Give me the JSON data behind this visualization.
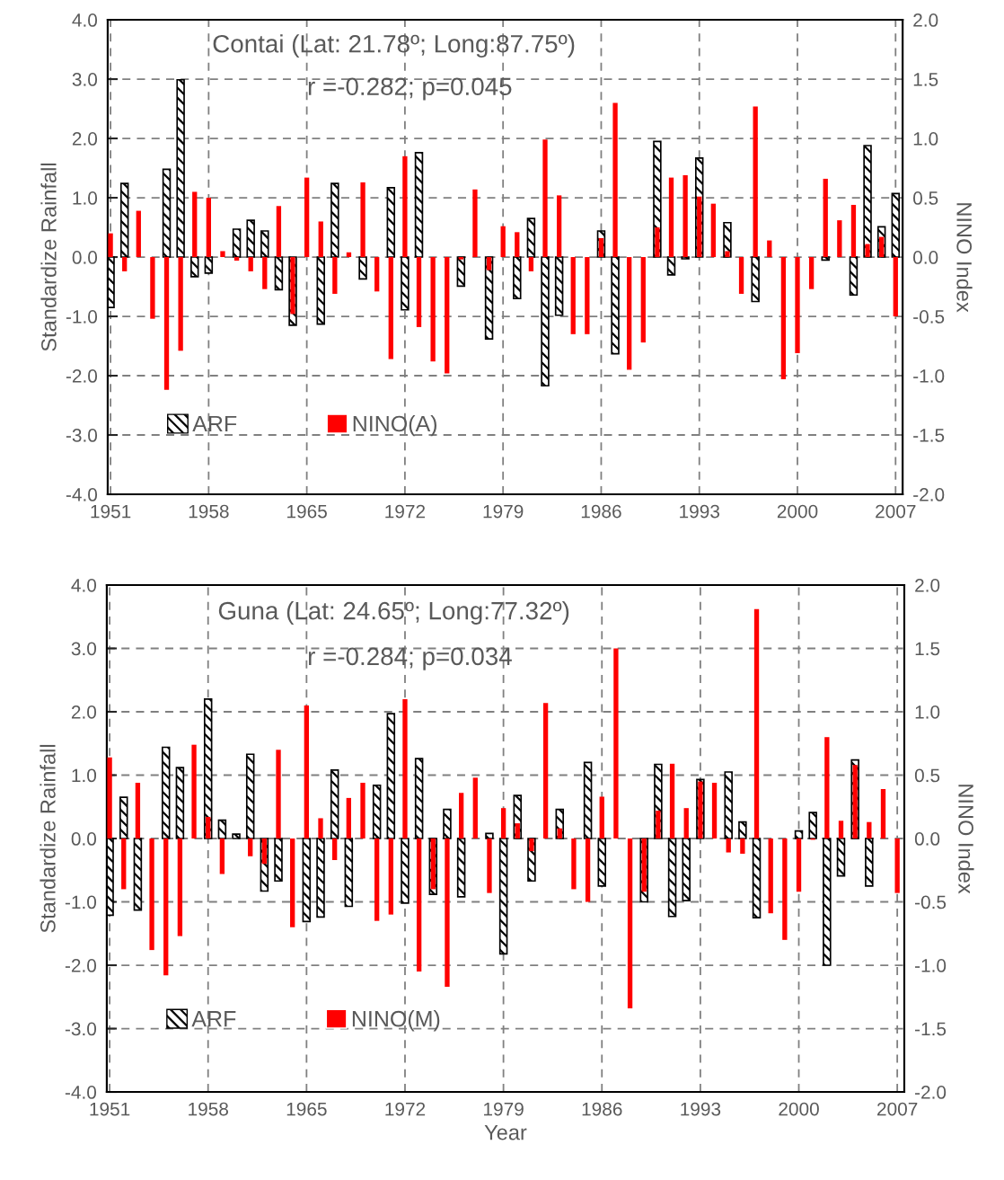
{
  "chart_data": [
    {
      "type": "bar",
      "title": "Contai (Lat: 21.78º; Long:87.75º)",
      "subtitle": "r =-0.282; p=0.045",
      "ylabel": "Standardize Rainfall",
      "y2label": "NINO Index",
      "x": [
        1951,
        1952,
        1953,
        1954,
        1955,
        1956,
        1957,
        1958,
        1959,
        1960,
        1961,
        1962,
        1963,
        1964,
        1965,
        1966,
        1967,
        1968,
        1969,
        1970,
        1971,
        1972,
        1973,
        1974,
        1975,
        1976,
        1977,
        1978,
        1979,
        1980,
        1981,
        1982,
        1983,
        1984,
        1985,
        1986,
        1987,
        1988,
        1989,
        1990,
        1991,
        1992,
        1993,
        1994,
        1995,
        1996,
        1997,
        1998,
        1999,
        2000,
        2001,
        2002,
        2003,
        2004,
        2005,
        2006,
        2007
      ],
      "series": [
        {
          "name": "ARF",
          "color": "#000000",
          "values": [
            -0.85,
            1.24,
            null,
            null,
            1.48,
            2.99,
            -0.33,
            -0.27,
            null,
            0.47,
            0.62,
            0.44,
            -0.55,
            -1.15,
            null,
            -1.13,
            1.24,
            null,
            -0.37,
            null,
            1.17,
            -0.89,
            1.76,
            null,
            null,
            -0.49,
            null,
            -1.38,
            null,
            -0.7,
            0.65,
            -2.17,
            -0.98,
            null,
            null,
            0.44,
            -1.63,
            null,
            null,
            1.95,
            -0.3,
            -0.03,
            1.67,
            null,
            0.58,
            null,
            -0.75,
            null,
            null,
            null,
            null,
            -0.05,
            null,
            -0.64,
            1.88,
            0.51,
            1.07
          ]
        },
        {
          "name": "NINO(A)",
          "color": "#ff0000",
          "axis": "y2",
          "values": [
            0.2,
            -0.12,
            0.39,
            -0.52,
            -1.12,
            -0.79,
            0.55,
            0.5,
            0.05,
            -0.03,
            -0.12,
            -0.27,
            0.43,
            -0.48,
            0.67,
            0.3,
            -0.31,
            0.04,
            0.63,
            -0.29,
            -0.86,
            0.85,
            -0.59,
            -0.88,
            -0.98,
            -0.02,
            0.57,
            -0.11,
            0.26,
            0.21,
            -0.12,
            0.99,
            0.52,
            -0.65,
            -0.65,
            0.16,
            1.3,
            -0.95,
            -0.72,
            0.25,
            0.67,
            0.69,
            0.51,
            0.45,
            0.05,
            -0.31,
            1.27,
            0.14,
            -1.03,
            -0.81,
            -0.27,
            0.66,
            0.31,
            0.44,
            0.11,
            0.17,
            -0.5
          ]
        }
      ],
      "xlim": [
        1950.8,
        2007.5
      ],
      "xticks": [
        1951,
        1958,
        1965,
        1972,
        1979,
        1986,
        1993,
        2000,
        2007
      ],
      "ylim": [
        -4,
        4
      ],
      "yticks": [
        {
          "value": -4,
          "label": "-4.0"
        },
        {
          "value": -3,
          "label": "-3.0"
        },
        {
          "value": -2,
          "label": "-2.0"
        },
        {
          "value": -1,
          "label": "-1.0"
        },
        {
          "value": 0,
          "label": "0.0"
        },
        {
          "value": 1,
          "label": "1.0"
        },
        {
          "value": 2,
          "label": "2.0"
        },
        {
          "value": 3,
          "label": "3.0"
        },
        {
          "value": 4,
          "label": "4.0"
        }
      ],
      "y2lim": [
        -2,
        2
      ],
      "y2ticks": [
        {
          "value": -2,
          "label": "-2.0"
        },
        {
          "value": -1.5,
          "label": "-1.5"
        },
        {
          "value": -1,
          "label": "-1.0"
        },
        {
          "value": -0.5,
          "label": "-0.5"
        },
        {
          "value": 0,
          "label": "0.0"
        },
        {
          "value": 0.5,
          "label": "0.5"
        },
        {
          "value": 1,
          "label": "1.0"
        },
        {
          "value": 1.5,
          "label": "1.5"
        },
        {
          "value": 2,
          "label": "2.0"
        }
      ],
      "grid": true,
      "legend": "bottom left"
    },
    {
      "type": "bar",
      "title": "Guna (Lat: 24.65º; Long:77.32º)",
      "subtitle": "r =-0.284; p=0.034",
      "xlabel": "Year",
      "ylabel": "Standardize Rainfall",
      "y2label": "NINO Index",
      "x": [
        1951,
        1952,
        1953,
        1954,
        1955,
        1956,
        1957,
        1958,
        1959,
        1960,
        1961,
        1962,
        1963,
        1964,
        1965,
        1966,
        1967,
        1968,
        1969,
        1970,
        1971,
        1972,
        1973,
        1974,
        1975,
        1976,
        1977,
        1978,
        1979,
        1980,
        1981,
        1982,
        1983,
        1984,
        1985,
        1986,
        1987,
        1988,
        1989,
        1990,
        1991,
        1992,
        1993,
        1994,
        1995,
        1996,
        1997,
        1998,
        1999,
        2000,
        2001,
        2002,
        2003,
        2004,
        2005,
        2006,
        2007
      ],
      "series": [
        {
          "name": "ARF",
          "color": "#000000",
          "values": [
            -1.21,
            0.65,
            -1.13,
            null,
            1.44,
            1.12,
            null,
            2.2,
            0.29,
            0.07,
            1.33,
            -0.83,
            -0.67,
            null,
            -1.31,
            -1.24,
            1.08,
            -1.07,
            null,
            0.84,
            1.97,
            -1.02,
            1.26,
            -0.88,
            0.46,
            -0.92,
            null,
            0.08,
            -1.82,
            0.68,
            -0.67,
            null,
            0.46,
            null,
            1.2,
            -0.75,
            null,
            null,
            -1.0,
            1.17,
            -1.23,
            -0.98,
            0.93,
            null,
            1.05,
            0.26,
            -1.25,
            null,
            null,
            0.12,
            0.41,
            -2.0,
            -0.59,
            1.24,
            -0.75,
            null,
            null
          ]
        },
        {
          "name": "NINO(M)",
          "color": "#ff0000",
          "axis": "y2",
          "values": [
            0.64,
            -0.4,
            0.44,
            -0.88,
            -1.08,
            -0.77,
            0.74,
            0.17,
            -0.28,
            null,
            -0.14,
            -0.2,
            0.7,
            -0.7,
            1.05,
            0.16,
            -0.17,
            0.32,
            0.44,
            -0.65,
            -0.6,
            1.1,
            -1.05,
            -0.4,
            -1.17,
            0.36,
            0.48,
            -0.43,
            0.24,
            0.12,
            -0.1,
            1.07,
            0.08,
            -0.4,
            -0.5,
            0.33,
            1.5,
            -1.34,
            -0.42,
            0.22,
            0.59,
            0.24,
            0.45,
            0.44,
            -0.11,
            -0.12,
            1.81,
            -0.59,
            -0.8,
            -0.42,
            -0.01,
            0.8,
            0.14,
            0.58,
            0.13,
            0.39,
            -0.43
          ]
        }
      ],
      "xlim": [
        1950.8,
        2007.5
      ],
      "xticks": [
        1951,
        1958,
        1965,
        1972,
        1979,
        1986,
        1993,
        2000,
        2007
      ],
      "ylim": [
        -4,
        4
      ],
      "yticks": [
        {
          "value": -4,
          "label": "-4.0"
        },
        {
          "value": -3,
          "label": "-3.0"
        },
        {
          "value": -2,
          "label": "-2.0"
        },
        {
          "value": -1,
          "label": "-1.0"
        },
        {
          "value": 0,
          "label": "0.0"
        },
        {
          "value": 1,
          "label": "1.0"
        },
        {
          "value": 2,
          "label": "2.0"
        },
        {
          "value": 3,
          "label": "3.0"
        },
        {
          "value": 4,
          "label": "4.0"
        }
      ],
      "y2lim": [
        -2,
        2
      ],
      "y2ticks": [
        {
          "value": -2,
          "label": "-2.0"
        },
        {
          "value": -1.5,
          "label": "-1.5"
        },
        {
          "value": -1,
          "label": "-1.0"
        },
        {
          "value": -0.5,
          "label": "-0.5"
        },
        {
          "value": 0,
          "label": "0.0"
        },
        {
          "value": 0.5,
          "label": "0.5"
        },
        {
          "value": 1,
          "label": "1.0"
        },
        {
          "value": 1.5,
          "label": "1.5"
        },
        {
          "value": 2,
          "label": "2.0"
        }
      ],
      "grid": true,
      "legend": "bottom left"
    }
  ]
}
